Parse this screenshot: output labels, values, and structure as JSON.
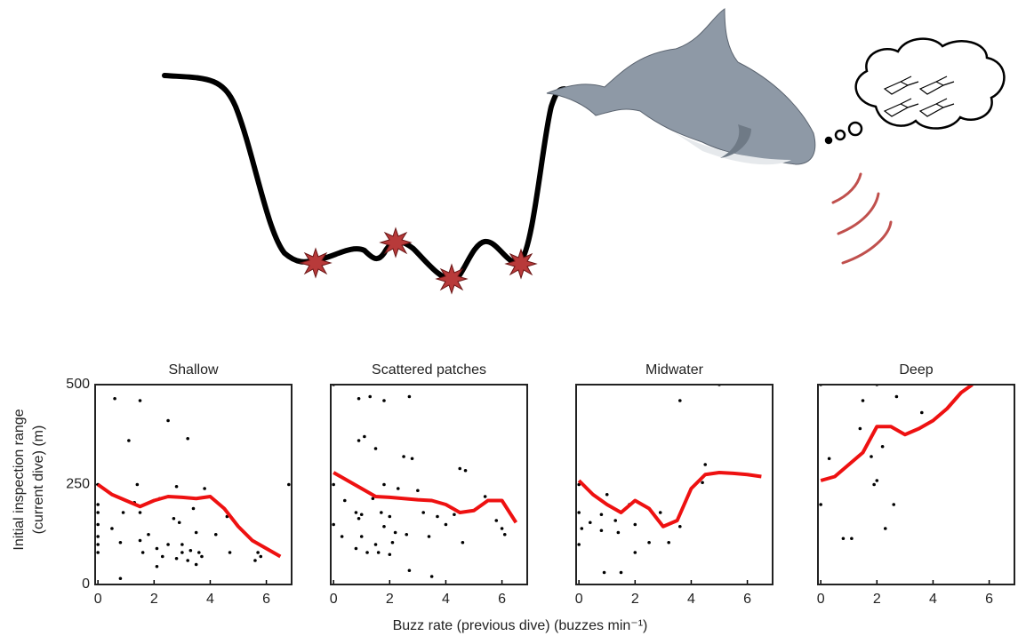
{
  "xlabel": "Buzz rate (previous dive) (buzzes min⁻¹)",
  "ylabel": [
    "Initial inspection range",
    "(current dive) (m)"
  ],
  "chart_data": [
    {
      "type": "scatter",
      "title": "Shallow",
      "xlim": [
        -0.1,
        6.9
      ],
      "ylim": [
        0,
        500
      ],
      "xticks": [
        0,
        2,
        4,
        6
      ],
      "yticks": [
        0,
        250,
        500
      ],
      "series": [
        {
          "color": "#000000",
          "x": [
            0.6,
            1.5,
            2.5,
            3.2,
            1.1,
            0,
            6.8,
            1.4,
            2.8,
            3.8,
            2.2,
            2.0,
            1.3,
            3.4,
            1.5,
            4.6,
            0.9,
            2.7,
            0.5,
            2.9,
            3.5,
            4.2,
            1.8,
            1.5,
            0.8,
            2.5,
            3.0,
            3.3,
            2.1,
            1.6,
            3.6,
            3.0,
            3.7,
            2.3,
            2.8,
            3.2,
            5.6,
            5.8,
            5.7,
            2.1,
            3.5,
            4.7,
            0.8,
            0,
            0,
            0,
            0,
            0,
            0
          ],
          "values": [
            465,
            460,
            410,
            365,
            360,
            250,
            250,
            250,
            245,
            240,
            215,
            210,
            205,
            190,
            180,
            170,
            180,
            165,
            140,
            155,
            130,
            125,
            125,
            110,
            105,
            100,
            100,
            85,
            90,
            80,
            80,
            80,
            70,
            70,
            65,
            60,
            60,
            70,
            80,
            45,
            50,
            80,
            15,
            200,
            150,
            120,
            100,
            80,
            180
          ]
        },
        {
          "type": "line",
          "color": "#ee1111",
          "x": [
            0,
            0.5,
            1,
            1.5,
            2,
            2.5,
            3,
            3.5,
            4,
            4.5,
            5,
            5.5,
            6,
            6.5
          ],
          "values": [
            250,
            225,
            210,
            195,
            210,
            220,
            218,
            215,
            220,
            190,
            145,
            110,
            90,
            70
          ]
        }
      ]
    },
    {
      "type": "scatter",
      "title": "Scattered patches",
      "xlim": [
        -0.1,
        6.9
      ],
      "ylim": [
        0,
        500
      ],
      "xticks": [
        0,
        2,
        4,
        6
      ],
      "series": [
        {
          "color": "#000000",
          "x": [
            0.9,
            1.3,
            1.8,
            2.7,
            1.1,
            0.9,
            1.5,
            2.5,
            2.8,
            4.5,
            4.7,
            1.8,
            2.3,
            3.0,
            0.4,
            1.4,
            5.4,
            0.8,
            1.0,
            1.7,
            2.0,
            3.2,
            3.7,
            4.3,
            0.9,
            1.8,
            2.2,
            2.6,
            4.0,
            5.8,
            6.0,
            6.1,
            0.3,
            1.0,
            1.5,
            2.1,
            3.4,
            4.6,
            0.8,
            1.2,
            1.6,
            2.0,
            2.7,
            3.5,
            6.9,
            0,
            0,
            0
          ],
          "values": [
            465,
            470,
            460,
            470,
            370,
            360,
            340,
            320,
            315,
            290,
            285,
            250,
            240,
            235,
            210,
            215,
            220,
            180,
            175,
            180,
            170,
            180,
            170,
            175,
            165,
            145,
            130,
            125,
            150,
            160,
            140,
            125,
            120,
            120,
            100,
            105,
            120,
            105,
            90,
            80,
            80,
            75,
            35,
            20,
            500,
            500,
            250,
            150
          ]
        },
        {
          "type": "line",
          "color": "#ee1111",
          "x": [
            0,
            0.5,
            1,
            1.5,
            2,
            2.5,
            3,
            3.5,
            4,
            4.5,
            5,
            5.5,
            6,
            6.5
          ],
          "values": [
            280,
            260,
            240,
            220,
            218,
            215,
            212,
            210,
            200,
            180,
            185,
            210,
            210,
            155
          ]
        }
      ]
    },
    {
      "type": "scatter",
      "title": "Midwater",
      "xlim": [
        -0.1,
        6.9
      ],
      "ylim": [
        0,
        500
      ],
      "xticks": [
        0,
        2,
        4,
        6
      ],
      "series": [
        {
          "color": "#000000",
          "x": [
            3.6,
            4.5,
            5.0,
            0,
            1.0,
            1.8,
            2.9,
            0.8,
            1.3,
            0.4,
            2.0,
            3.6,
            4.4,
            0.1,
            0.8,
            1.4,
            2.5,
            3.2,
            2.0,
            0.9,
            1.5,
            0,
            0
          ],
          "values": [
            460,
            300,
            500,
            250,
            225,
            200,
            180,
            175,
            160,
            155,
            150,
            145,
            255,
            140,
            135,
            130,
            105,
            105,
            80,
            30,
            30,
            100,
            180
          ]
        },
        {
          "type": "line",
          "color": "#ee1111",
          "x": [
            0,
            0.5,
            1,
            1.5,
            2,
            2.5,
            3,
            3.5,
            4,
            4.5,
            5,
            5.5,
            6,
            6.5
          ],
          "values": [
            260,
            225,
            200,
            180,
            210,
            190,
            145,
            160,
            240,
            275,
            280,
            278,
            275,
            270
          ]
        }
      ]
    },
    {
      "type": "scatter",
      "title": "Deep",
      "xlim": [
        -0.1,
        6.9
      ],
      "ylim": [
        0,
        500
      ],
      "xticks": [
        0,
        2,
        4,
        6
      ],
      "series": [
        {
          "color": "#000000",
          "x": [
            0,
            2,
            2.7,
            1.5,
            1.4,
            2.2,
            3.6,
            1.8,
            0.3,
            2.0,
            1.9,
            2.6,
            2.3,
            0.8,
            1.1,
            0,
            6.9
          ],
          "values": [
            500,
            500,
            470,
            460,
            390,
            345,
            430,
            320,
            315,
            260,
            250,
            200,
            140,
            115,
            115,
            200,
            500
          ]
        },
        {
          "type": "line",
          "color": "#ee1111",
          "x": [
            0,
            0.5,
            1,
            1.5,
            2,
            2.5,
            3,
            3.5,
            4,
            4.5,
            5,
            5.4
          ],
          "values": [
            260,
            270,
            300,
            330,
            395,
            395,
            375,
            390,
            410,
            440,
            480,
            500
          ]
        }
      ]
    }
  ]
}
